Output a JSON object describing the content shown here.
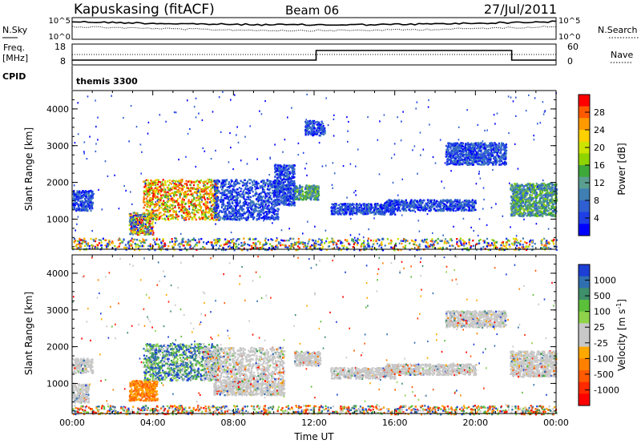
{
  "header": {
    "station": "Kapuskasing (fitACF)",
    "beam": "Beam 06",
    "date": "27/Jul/2011"
  },
  "top_panels": {
    "nsky_label": "N.Sky",
    "nsearch_label": "N.Search",
    "nsky_ticks": [
      "10^5",
      "10^0"
    ],
    "nsearch_ticks": [
      "10^5",
      "10^0"
    ],
    "freq_label_line1": "Freq.",
    "freq_label_line2": "[MHz]",
    "freq_ticks": [
      "18",
      "8"
    ],
    "nave_ticks": [
      "60",
      "0"
    ],
    "nave_label": "Nave",
    "cpid_label": "CPID",
    "cpid_value": "themis 3300"
  },
  "chart_data": [
    {
      "type": "heatmap",
      "panel": "power",
      "ylabel": "Slant Range [km]",
      "ylim": [
        180,
        4500
      ],
      "yticks": [
        "1000",
        "2000",
        "3000",
        "4000"
      ],
      "xlim": [
        "00:00",
        "24:00"
      ],
      "colorbar": {
        "label": "Power [dB]",
        "ticks": [
          "28",
          "24",
          "20",
          "16",
          "12",
          "8",
          "4"
        ],
        "colors": [
          "#ff0000",
          "#ff5a00",
          "#ff9a00",
          "#ffd000",
          "#cde400",
          "#8fd400",
          "#3fa83a",
          "#5a9e90",
          "#3f7fb3",
          "#2f5fd0",
          "#1f3fe6",
          "#0000ff"
        ]
      },
      "blobs": [
        {
          "t0": 0.0,
          "t1": 1.0,
          "r0": 1250,
          "r1": 1800,
          "level": "low"
        },
        {
          "t0": 2.8,
          "t1": 4.0,
          "r0": 600,
          "r1": 1200,
          "level": "mixed"
        },
        {
          "t0": 3.5,
          "t1": 7.2,
          "r0": 1000,
          "r1": 2100,
          "level": "high"
        },
        {
          "t0": 7.0,
          "t1": 10.2,
          "r0": 1000,
          "r1": 2100,
          "level": "low"
        },
        {
          "t0": 10.0,
          "t1": 11.0,
          "r0": 1400,
          "r1": 2500,
          "level": "low"
        },
        {
          "t0": 11.0,
          "t1": 12.2,
          "r0": 1550,
          "r1": 1950,
          "level": "mid"
        },
        {
          "t0": 11.5,
          "t1": 12.5,
          "r0": 3300,
          "r1": 3700,
          "level": "low"
        },
        {
          "t0": 12.8,
          "t1": 16.0,
          "r0": 1150,
          "r1": 1450,
          "level": "low"
        },
        {
          "t0": 15.5,
          "t1": 20.0,
          "r0": 1250,
          "r1": 1550,
          "level": "low"
        },
        {
          "t0": 18.5,
          "t1": 21.5,
          "r0": 2500,
          "r1": 3100,
          "level": "low"
        },
        {
          "t0": 21.7,
          "t1": 24.0,
          "r0": 1100,
          "r1": 2000,
          "level": "mid"
        },
        {
          "t0": 0.0,
          "t1": 24.0,
          "r0": 180,
          "r1": 500,
          "level": "mixed"
        }
      ]
    },
    {
      "type": "heatmap",
      "panel": "velocity",
      "ylabel": "Slant Range [km]",
      "ylim": [
        180,
        4500
      ],
      "yticks": [
        "1000",
        "2000",
        "3000",
        "4000"
      ],
      "xlabel": "Time UT",
      "xticks": [
        "00:00",
        "04:00",
        "08:00",
        "12:00",
        "16:00",
        "20:00",
        "00:00"
      ],
      "colorbar": {
        "label": "Velocity [m s",
        "label_sup": "-1",
        "label_end": "]",
        "ticks": [
          "1000",
          "500",
          "100",
          "25",
          "-25",
          "-100",
          "-500",
          "-1000"
        ],
        "colors": [
          "#1c3fd6",
          "#2f6fb0",
          "#3e8f6a",
          "#5bbf3a",
          "#8fd34a",
          "#c8c8c8",
          "#c8c8c8",
          "#ffa800",
          "#ff8000",
          "#ff5a00",
          "#ff2a00",
          "#ff0000"
        ]
      },
      "blobs": [
        {
          "t0": 0.0,
          "t1": 1.0,
          "r0": 1300,
          "r1": 1700,
          "level": "grey"
        },
        {
          "t0": 0.0,
          "t1": 0.8,
          "r0": 500,
          "r1": 1000,
          "level": "grey"
        },
        {
          "t0": 2.8,
          "t1": 4.2,
          "r0": 550,
          "r1": 1100,
          "level": "orange"
        },
        {
          "t0": 3.5,
          "t1": 7.2,
          "r0": 1100,
          "r1": 2100,
          "level": "green"
        },
        {
          "t0": 6.5,
          "t1": 10.5,
          "r0": 1100,
          "r1": 2000,
          "level": "grey"
        },
        {
          "t0": 7.0,
          "t1": 10.5,
          "r0": 700,
          "r1": 1100,
          "level": "grey"
        },
        {
          "t0": 11.0,
          "t1": 12.3,
          "r0": 1500,
          "r1": 1900,
          "level": "grey"
        },
        {
          "t0": 12.8,
          "t1": 16.0,
          "r0": 1150,
          "r1": 1450,
          "level": "grey"
        },
        {
          "t0": 15.5,
          "t1": 20.0,
          "r0": 1250,
          "r1": 1550,
          "level": "grey"
        },
        {
          "t0": 18.5,
          "t1": 21.5,
          "r0": 2550,
          "r1": 3000,
          "level": "grey"
        },
        {
          "t0": 21.7,
          "t1": 24.0,
          "r0": 1200,
          "r1": 1900,
          "level": "grey"
        },
        {
          "t0": 0.0,
          "t1": 24.0,
          "r0": 180,
          "r1": 420,
          "level": "mixed"
        }
      ]
    }
  ]
}
